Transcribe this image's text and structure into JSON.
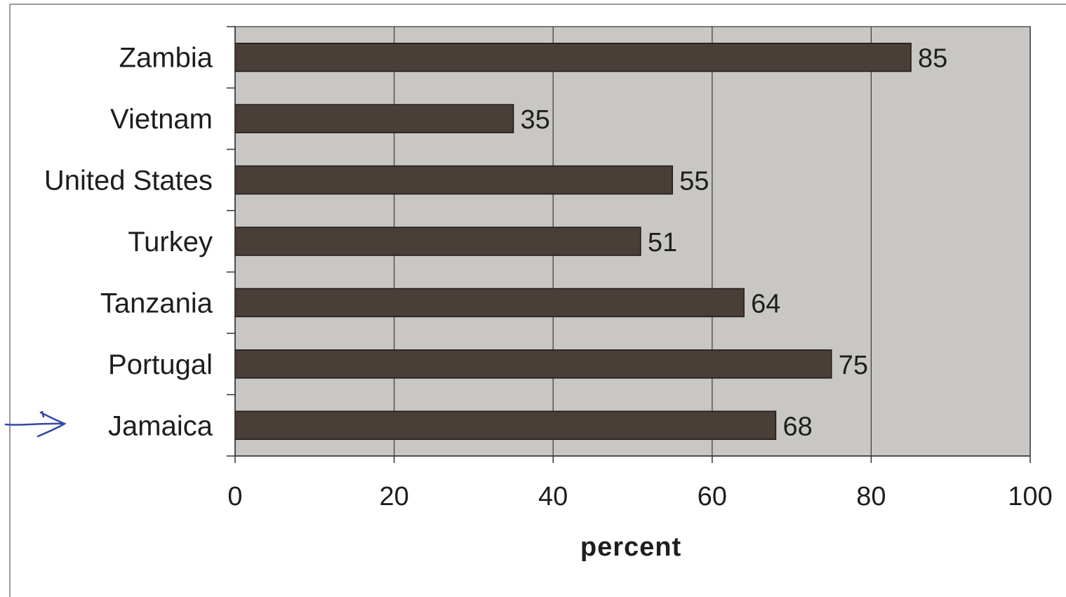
{
  "chart_data": {
    "type": "bar",
    "orientation": "horizontal",
    "categories": [
      "Zambia",
      "Vietnam",
      "United States",
      "Turkey",
      "Tanzania",
      "Portugal",
      "Jamaica"
    ],
    "values": [
      85,
      35,
      55,
      51,
      64,
      75,
      68
    ],
    "data_labels": [
      "85",
      "35",
      "55",
      "51",
      "64",
      "75",
      "68"
    ],
    "xlabel": "percent",
    "ylabel": "",
    "xlim": [
      0,
      100
    ],
    "xticks": [
      0,
      20,
      40,
      60,
      80,
      100
    ],
    "xtick_labels": [
      "0",
      "20",
      "40",
      "60",
      "80",
      "100"
    ],
    "grid": "vertical",
    "legend": "none",
    "annotation": "hand-drawn arrow pointing at Jamaica",
    "colors": {
      "bar": "#4a3f38",
      "bar_edge": "#1c1714",
      "plot_background": "#c9c7c4",
      "gridline": "#3a3a3a",
      "annotation": "#3348a8"
    }
  }
}
